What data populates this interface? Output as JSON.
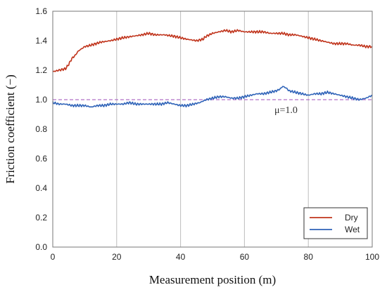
{
  "chart_data": {
    "type": "line",
    "title": "",
    "xlabel": "Measurement position    (m)",
    "ylabel": "Friction coefficient  (−)",
    "xlim": [
      0,
      100
    ],
    "ylim": [
      0.0,
      1.6
    ],
    "xticks": [
      0,
      20,
      40,
      60,
      80,
      100
    ],
    "yticks": [
      "0.0",
      "0.2",
      "0.4",
      "0.6",
      "0.8",
      "1.0",
      "1.2",
      "1.4",
      "1.6"
    ],
    "grid": "vertical",
    "legend_position": "bottom-right",
    "reference_line": {
      "y": 1.0,
      "label": "μ=1.0",
      "label_x": 73,
      "color": "#b070c8"
    },
    "series": [
      {
        "name": "Dry",
        "color": "#c0341c",
        "x": [
          0,
          2,
          4,
          5,
          6,
          7,
          8,
          10,
          12,
          15,
          18,
          20,
          22,
          25,
          28,
          30,
          32,
          35,
          38,
          40,
          42,
          45,
          47,
          48,
          50,
          52,
          54,
          56,
          58,
          60,
          62,
          64,
          66,
          68,
          70,
          72,
          74,
          76,
          78,
          80,
          82,
          84,
          86,
          88,
          90,
          92,
          94,
          96,
          98,
          100
        ],
        "values": [
          1.19,
          1.2,
          1.21,
          1.24,
          1.28,
          1.3,
          1.33,
          1.36,
          1.37,
          1.39,
          1.4,
          1.41,
          1.42,
          1.43,
          1.44,
          1.45,
          1.44,
          1.44,
          1.43,
          1.42,
          1.41,
          1.4,
          1.41,
          1.43,
          1.45,
          1.46,
          1.47,
          1.46,
          1.47,
          1.46,
          1.46,
          1.46,
          1.46,
          1.45,
          1.45,
          1.45,
          1.44,
          1.44,
          1.43,
          1.42,
          1.41,
          1.4,
          1.39,
          1.38,
          1.38,
          1.38,
          1.37,
          1.37,
          1.36,
          1.36
        ]
      },
      {
        "name": "Wet",
        "color": "#2f63b8",
        "x": [
          0,
          2,
          4,
          6,
          8,
          10,
          12,
          14,
          16,
          18,
          20,
          22,
          24,
          26,
          28,
          30,
          32,
          34,
          36,
          38,
          40,
          42,
          44,
          46,
          48,
          50,
          52,
          54,
          56,
          58,
          60,
          62,
          64,
          66,
          68,
          70,
          71,
          72,
          73,
          74,
          76,
          78,
          80,
          82,
          84,
          86,
          88,
          90,
          92,
          94,
          96,
          98,
          100
        ],
        "values": [
          0.98,
          0.97,
          0.97,
          0.96,
          0.96,
          0.96,
          0.95,
          0.96,
          0.96,
          0.97,
          0.97,
          0.97,
          0.98,
          0.97,
          0.97,
          0.97,
          0.97,
          0.97,
          0.98,
          0.97,
          0.96,
          0.96,
          0.97,
          0.98,
          1.0,
          1.01,
          1.02,
          1.02,
          1.01,
          1.01,
          1.02,
          1.03,
          1.04,
          1.04,
          1.05,
          1.06,
          1.07,
          1.09,
          1.08,
          1.06,
          1.05,
          1.04,
          1.03,
          1.04,
          1.04,
          1.05,
          1.04,
          1.03,
          1.02,
          1.01,
          1.0,
          1.01,
          1.03
        ]
      }
    ]
  }
}
